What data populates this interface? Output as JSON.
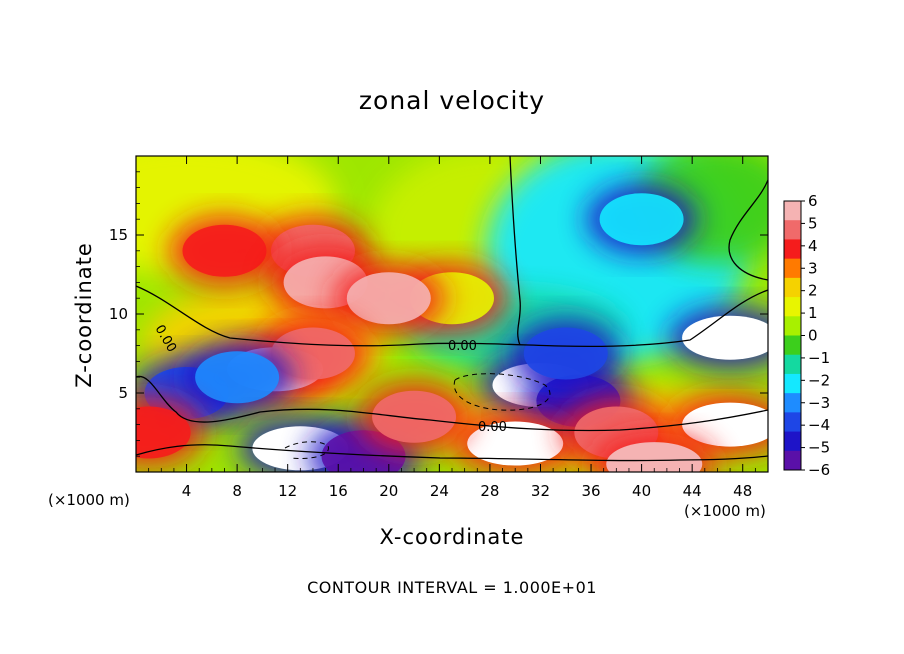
{
  "chart_data": {
    "type": "heatmap",
    "title": "zonal velocity",
    "xlabel": "X-coordinate",
    "ylabel": "Z-coordinate",
    "x_unit": "(×1000 m)",
    "footer": "CONTOUR INTERVAL = 1.000E+01",
    "xlim": [
      0,
      50
    ],
    "ylim": [
      0,
      20
    ],
    "x_ticks": [
      4,
      8,
      12,
      16,
      20,
      24,
      28,
      32,
      36,
      40,
      44,
      48
    ],
    "y_ticks": [
      5,
      10,
      15
    ],
    "colorbar": {
      "ticks": [
        6,
        5,
        4,
        3,
        2,
        1,
        0,
        -1,
        -2,
        -3,
        -4,
        -5,
        -6
      ],
      "colors": [
        "#f5b3b3",
        "#f06a6a",
        "#f51c1c",
        "#ff7a00",
        "#f5d200",
        "#e8f500",
        "#a8f000",
        "#3ccf1c",
        "#14d9a0",
        "#14e8ff",
        "#1e8cff",
        "#1e46e6",
        "#1e14c8",
        "#5a10a8"
      ]
    },
    "contour_labels": [
      "0.00",
      "0.00",
      "0.00"
    ],
    "blobs": [
      {
        "x": 25,
        "y": 11,
        "value": 1.5
      },
      {
        "x": 40,
        "y": 16,
        "value": -2.2
      },
      {
        "x": 14,
        "y": 14,
        "value": 4.8
      },
      {
        "x": 7,
        "y": 14,
        "value": 4.0
      },
      {
        "x": 15,
        "y": 12,
        "value": 5.5
      },
      {
        "x": 20,
        "y": 11,
        "value": 5.2
      },
      {
        "x": 11,
        "y": 6.5,
        "value": 7.0
      },
      {
        "x": 14,
        "y": 7.5,
        "value": 5.0
      },
      {
        "x": 32,
        "y": 5.5,
        "value": -7.0
      },
      {
        "x": 35,
        "y": 4.5,
        "value": -5.0
      },
      {
        "x": 34,
        "y": 7.5,
        "value": -4.0
      },
      {
        "x": 30,
        "y": 1.8,
        "value": 6.5
      },
      {
        "x": 38,
        "y": 2.5,
        "value": 5.0
      },
      {
        "x": 47,
        "y": 3,
        "value": 7.0
      },
      {
        "x": 47,
        "y": 8.5,
        "value": -7.0
      },
      {
        "x": 4,
        "y": 5,
        "value": -4.0
      },
      {
        "x": 8,
        "y": 6,
        "value": -3.0
      },
      {
        "x": 1,
        "y": 2.5,
        "value": 4.0
      },
      {
        "x": 13,
        "y": 1.5,
        "value": -7.0
      },
      {
        "x": 18,
        "y": 1.0,
        "value": -5.5
      },
      {
        "x": 22,
        "y": 3.5,
        "value": 5.0
      },
      {
        "x": 41,
        "y": 0.5,
        "value": 6.0
      }
    ]
  }
}
